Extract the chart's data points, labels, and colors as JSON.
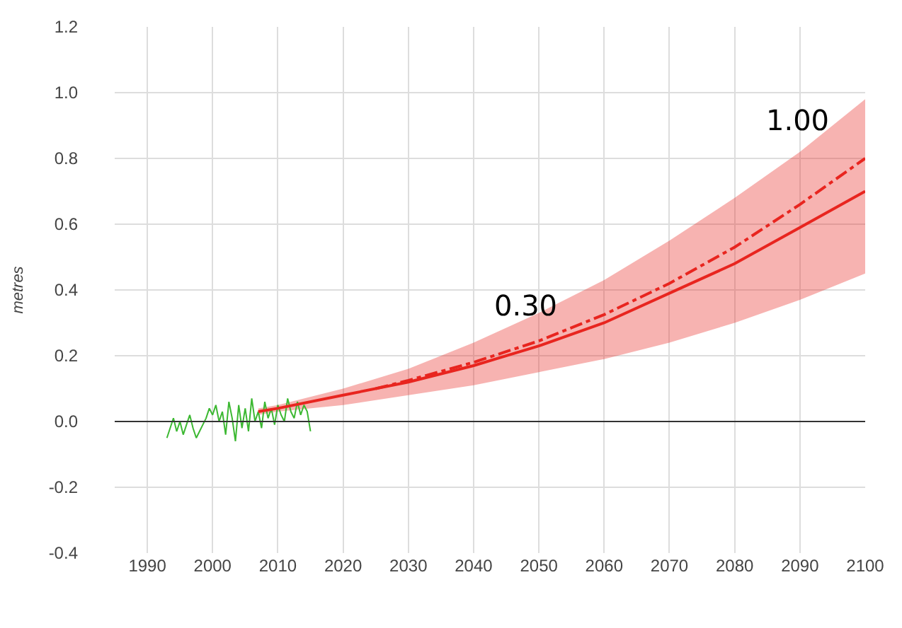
{
  "chart_data": {
    "type": "line",
    "ylabel": "metres",
    "xlim": [
      1985,
      2100
    ],
    "xticks": [
      1990,
      2000,
      2010,
      2020,
      2030,
      2040,
      2050,
      2060,
      2070,
      2080,
      2090,
      2100
    ],
    "ylim": [
      -0.4,
      1.2
    ],
    "yticks": [
      {
        "value": -0.4,
        "label": "-0.4"
      },
      {
        "value": -0.2,
        "label": "-0.2"
      },
      {
        "value": 0,
        "label": "0.0"
      },
      {
        "value": 0.2,
        "label": "0.2"
      },
      {
        "value": 0.4,
        "label": "0.4"
      },
      {
        "value": 0.6,
        "label": "0.6"
      },
      {
        "value": 0.8,
        "label": "0.8"
      },
      {
        "value": 1.0,
        "label": "1.0"
      },
      {
        "value": 1.2,
        "label": "1.2"
      }
    ],
    "grid": true,
    "series": [
      {
        "color": "#3cb832",
        "line_style": "solid",
        "x": [
          1993,
          1993.5,
          1994,
          1994.5,
          1995,
          1995.5,
          1996,
          1996.5,
          1997,
          1997.5,
          1998,
          1998.5,
          1999,
          1999.5,
          2000,
          2000.5,
          2001,
          2001.5,
          2002,
          2002.5,
          2003,
          2003.5,
          2004,
          2004.5,
          2005,
          2005.5,
          2006,
          2006.5,
          2007,
          2007.5,
          2008,
          2008.5,
          2009,
          2009.5,
          2010,
          2010.5,
          2011,
          2011.5,
          2012,
          2012.5,
          2013,
          2013.5,
          2014,
          2014.5,
          2015
        ],
        "values": [
          -0.05,
          -0.02,
          0.01,
          -0.03,
          0.0,
          -0.04,
          -0.01,
          0.02,
          -0.02,
          -0.05,
          -0.03,
          -0.01,
          0.01,
          0.04,
          0.02,
          0.05,
          0.0,
          0.03,
          -0.04,
          0.06,
          0.01,
          -0.06,
          0.05,
          -0.02,
          0.04,
          -0.03,
          0.07,
          0.0,
          0.03,
          -0.02,
          0.06,
          0.01,
          0.04,
          -0.01,
          0.05,
          0.02,
          0.0,
          0.07,
          0.03,
          0.01,
          0.06,
          0.02,
          0.05,
          0.03,
          -0.03
        ]
      },
      {
        "color": "#e8251f",
        "line_style": "solid",
        "x": [
          2007,
          2010,
          2020,
          2030,
          2040,
          2050,
          2060,
          2070,
          2080,
          2090,
          2100
        ],
        "values": [
          0.03,
          0.04,
          0.08,
          0.12,
          0.17,
          0.23,
          0.3,
          0.39,
          0.48,
          0.59,
          0.7
        ],
        "lower": [
          0.02,
          0.03,
          0.05,
          0.08,
          0.11,
          0.15,
          0.19,
          0.24,
          0.3,
          0.37,
          0.45
        ],
        "upper": [
          0.04,
          0.05,
          0.1,
          0.16,
          0.24,
          0.33,
          0.43,
          0.55,
          0.68,
          0.82,
          0.98
        ]
      },
      {
        "color": "#e8251f",
        "line_style": "dashdot",
        "x": [
          2025,
          2030,
          2040,
          2050,
          2060,
          2070,
          2080,
          2090,
          2100
        ],
        "values": [
          0.1,
          0.125,
          0.18,
          0.245,
          0.325,
          0.42,
          0.53,
          0.66,
          0.8
        ]
      }
    ],
    "ref_lines": [
      {
        "axis": "y",
        "value": 0,
        "color": "#333333",
        "line_style": "solid"
      }
    ],
    "annotations": [
      "0.30",
      "1.00"
    ]
  }
}
